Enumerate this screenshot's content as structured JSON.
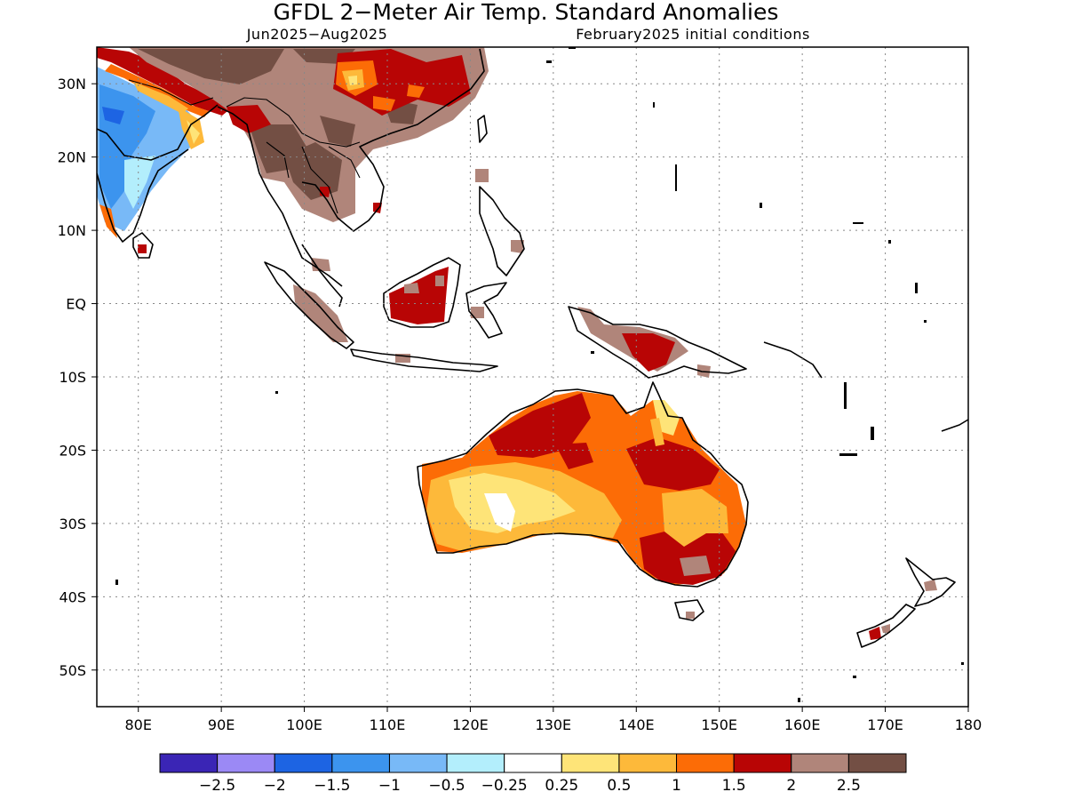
{
  "title": "GFDL 2−Meter Air Temp. Standard Anomalies",
  "period": "Jun2025−Aug2025",
  "init": "February2025 initial conditions",
  "x_ticks": [
    {
      "lon": 80,
      "label": "80E"
    },
    {
      "lon": 90,
      "label": "90E"
    },
    {
      "lon": 100,
      "label": "100E"
    },
    {
      "lon": 110,
      "label": "110E"
    },
    {
      "lon": 120,
      "label": "120E"
    },
    {
      "lon": 130,
      "label": "130E"
    },
    {
      "lon": 140,
      "label": "140E"
    },
    {
      "lon": 150,
      "label": "150E"
    },
    {
      "lon": 160,
      "label": "160E"
    },
    {
      "lon": 170,
      "label": "170E"
    },
    {
      "lon": 180,
      "label": "180"
    }
  ],
  "y_ticks": [
    {
      "lat": 30,
      "label": "30N"
    },
    {
      "lat": 20,
      "label": "20N"
    },
    {
      "lat": 10,
      "label": "10N"
    },
    {
      "lat": 0,
      "label": "EQ"
    },
    {
      "lat": -10,
      "label": "10S"
    },
    {
      "lat": -20,
      "label": "20S"
    },
    {
      "lat": -30,
      "label": "30S"
    },
    {
      "lat": -40,
      "label": "40S"
    },
    {
      "lat": -50,
      "label": "50S"
    }
  ],
  "colorbar": {
    "colors": [
      "#3a25b5",
      "#9b89f5",
      "#1d64e3",
      "#3c94ee",
      "#78b9f7",
      "#b3eefc",
      "#ffffff",
      "#fee478",
      "#fdb93a",
      "#fc6c06",
      "#b80505",
      "#b0857a",
      "#734f44"
    ],
    "labels": [
      "−2.5",
      "−2",
      "−1.5",
      "−1",
      "−0.5",
      "−0.25",
      "0.25",
      "0.5",
      "1",
      "1.5",
      "2",
      "2.5"
    ]
  }
}
